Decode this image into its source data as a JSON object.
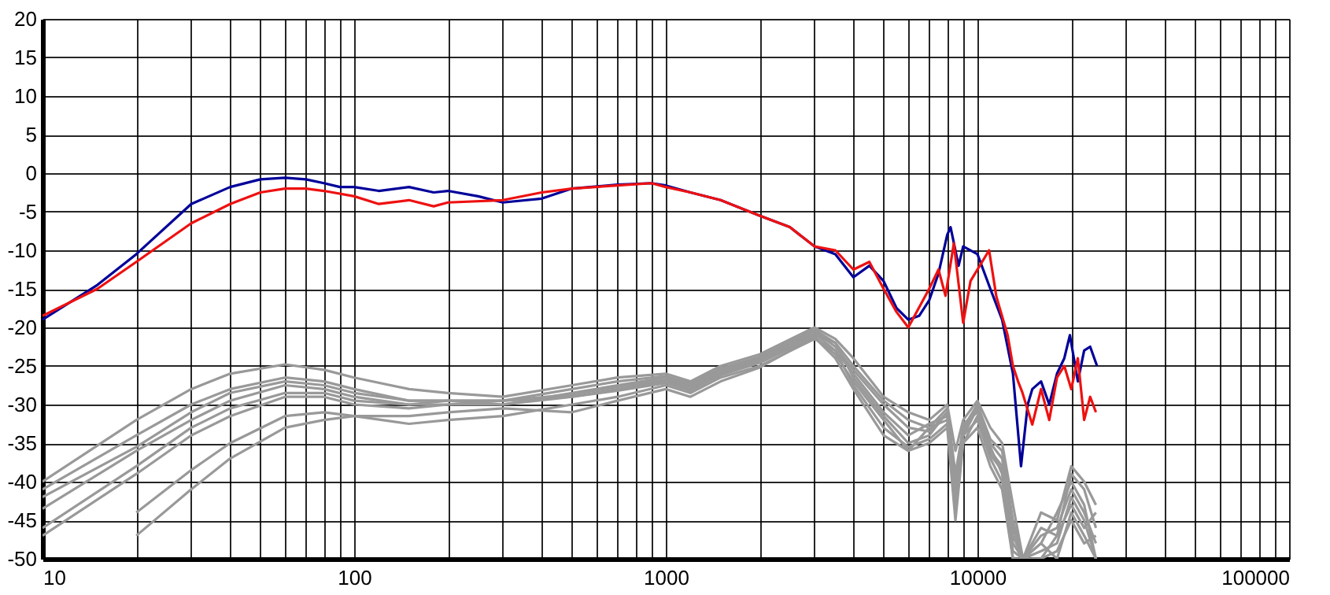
{
  "chart_data": {
    "type": "line",
    "log": "x",
    "grid": true,
    "legend": false,
    "line_style": "solid",
    "marker": "none",
    "xlim": [
      10,
      100000
    ],
    "ylim": [
      -50,
      20
    ],
    "xticks": [
      10,
      {
        "value": 20,
        "label": null
      },
      {
        "value": 30,
        "label": null
      },
      {
        "value": 40,
        "label": null
      },
      {
        "value": 50,
        "label": null
      },
      {
        "value": 60,
        "label": null
      },
      {
        "value": 70,
        "label": null
      },
      {
        "value": 80,
        "label": null
      },
      {
        "value": 90,
        "label": null
      },
      100,
      {
        "value": 200,
        "label": null
      },
      {
        "value": 300,
        "label": null
      },
      {
        "value": 400,
        "label": null
      },
      {
        "value": 500,
        "label": null
      },
      {
        "value": 600,
        "label": null
      },
      {
        "value": 700,
        "label": null
      },
      {
        "value": 800,
        "label": null
      },
      {
        "value": 900,
        "label": null
      },
      1000,
      {
        "value": 2000,
        "label": null
      },
      {
        "value": 3000,
        "label": null
      },
      {
        "value": 4000,
        "label": null
      },
      {
        "value": 5000,
        "label": null
      },
      {
        "value": 6000,
        "label": null
      },
      {
        "value": 7000,
        "label": null
      },
      {
        "value": 8000,
        "label": null
      },
      {
        "value": 9000,
        "label": null
      },
      10000,
      {
        "value": 20000,
        "label": null
      },
      {
        "value": 30000,
        "label": null
      },
      {
        "value": 40000,
        "label": null
      },
      {
        "value": 50000,
        "label": null
      },
      {
        "value": 60000,
        "label": null
      },
      {
        "value": 70000,
        "label": null
      },
      {
        "value": 80000,
        "label": null
      },
      {
        "value": 90000,
        "label": null
      },
      100000
    ],
    "yticks": [
      -50,
      -45,
      -40,
      -35,
      -30,
      -25,
      -20,
      -15,
      -10,
      -5,
      0,
      5,
      10,
      15,
      20
    ],
    "x": [
      10,
      20,
      30,
      40,
      60,
      80,
      100,
      150,
      200,
      300,
      500,
      700,
      1000,
      1200,
      1500,
      2000,
      3000,
      3500,
      4000,
      5000,
      6000,
      7000,
      8000,
      8500,
      9000,
      10000,
      11000,
      12000,
      13000,
      14000,
      16000,
      18000,
      20000,
      22000,
      24000
    ],
    "series": [
      {
        "color": "#999999",
        "values": [
          -40,
          -32,
          -28,
          -26,
          -24.8,
          -25.5,
          -26.5,
          -28,
          -28.5,
          -29,
          -27.5,
          -26.5,
          -26,
          -27,
          -25,
          -23.5,
          -20,
          -21.5,
          -24,
          -29,
          -31,
          -32,
          -30,
          -36,
          -32,
          -29.5,
          -33,
          -35,
          -43,
          -50,
          -44,
          -45,
          -38,
          -40,
          -43
        ]
      },
      {
        "color": "#999999",
        "values": [
          -41,
          -34,
          -30,
          -28,
          -26.5,
          -27,
          -28,
          -29.5,
          -29.5,
          -29.5,
          -28,
          -27,
          -26.3,
          -27.3,
          -25.3,
          -23.8,
          -20.3,
          -22,
          -25,
          -29.5,
          -32,
          -33,
          -30.5,
          -39,
          -33,
          -30,
          -34.5,
          -36,
          -45,
          -50,
          -46,
          -47,
          -39,
          -41,
          -46
        ]
      },
      {
        "color": "#999999",
        "values": [
          -42,
          -35.5,
          -31,
          -28.5,
          -27,
          -27.5,
          -28.5,
          -29.5,
          -29.5,
          -30,
          -28.5,
          -27.5,
          -26.5,
          -27.5,
          -25.5,
          -24,
          -20.5,
          -22.5,
          -25.5,
          -30,
          -33,
          -33.5,
          -31,
          -40,
          -34,
          -30.5,
          -35,
          -37,
          -46,
          -50,
          -48,
          -44,
          -40,
          -43,
          -50
        ]
      },
      {
        "color": "#999999",
        "values": [
          -43.5,
          -36,
          -32,
          -29.5,
          -27.5,
          -28,
          -29,
          -30,
          -29.5,
          -29.5,
          -28.7,
          -27.7,
          -26.8,
          -27.7,
          -25.8,
          -24.2,
          -20.8,
          -23,
          -26,
          -31,
          -34,
          -32.5,
          -31.5,
          -42,
          -32.5,
          -31,
          -36,
          -38,
          -48,
          -50,
          -47,
          -46,
          -41,
          -44,
          -48
        ]
      },
      {
        "color": "#999999",
        "values": [
          -46,
          -38,
          -33,
          -30.5,
          -28.5,
          -28.5,
          -29.5,
          -30,
          -30,
          -29.5,
          -29,
          -28,
          -27,
          -28,
          -26,
          -24.5,
          -21,
          -22,
          -26.5,
          -31.5,
          -35,
          -34,
          -31,
          -44,
          -33.5,
          -30,
          -35.5,
          -39,
          -50,
          -50,
          -49,
          -48,
          -42,
          -45,
          -50
        ]
      },
      {
        "color": "#999999",
        "values": [
          -47,
          -39,
          -34,
          -31.5,
          -29,
          -29,
          -30,
          -30.5,
          -30,
          -30,
          -29,
          -28.2,
          -27.2,
          -28.2,
          -26.2,
          -24.6,
          -21.2,
          -23.5,
          -27,
          -32,
          -36,
          -33,
          -32,
          -41,
          -35,
          -31.5,
          -36.5,
          -38.5,
          -47,
          -50,
          -50,
          -47,
          -43,
          -46,
          -44
        ]
      },
      {
        "color": "#999999",
        "values": [
          null,
          -44,
          -38.5,
          -35,
          -31.5,
          -31,
          -31.5,
          -32.5,
          -32,
          -31.5,
          -30,
          -29,
          -27.5,
          -28.5,
          -26.5,
          -25,
          -21.5,
          -23,
          -27.5,
          -33,
          -35.5,
          -34.5,
          -32.5,
          -43,
          -34,
          -32,
          -37,
          -40,
          -49,
          -50,
          -48,
          -50,
          -44,
          -47,
          -50
        ]
      },
      {
        "color": "#999999",
        "values": [
          null,
          -47,
          -41,
          -37,
          -33,
          -32,
          -31.5,
          -31.5,
          -31,
          -30.5,
          -31,
          -29.5,
          -28,
          -29,
          -27,
          -25.2,
          -21.3,
          -24,
          -28,
          -34,
          -36,
          -35,
          -33,
          -45,
          -35,
          -33,
          -38,
          -41,
          -50,
          -50,
          -50,
          -49,
          -45,
          -48,
          -47
        ]
      },
      {
        "color": "#000099",
        "x": [
          10,
          15,
          20,
          30,
          40,
          50,
          60,
          70,
          80,
          90,
          100,
          120,
          150,
          180,
          200,
          250,
          300,
          400,
          500,
          700,
          900,
          1000,
          1200,
          1500,
          2000,
          2500,
          3000,
          3500,
          4000,
          4500,
          5000,
          5500,
          6000,
          6500,
          7000,
          7500,
          8000,
          8200,
          8700,
          9000,
          10000,
          11000,
          12000,
          13000,
          13800,
          14500,
          15000,
          16000,
          17000,
          18000,
          19000,
          19800,
          21000,
          22000,
          23000,
          24200
        ],
        "values": [
          -19,
          -14.5,
          -10.5,
          -4,
          -1.8,
          -0.8,
          -0.6,
          -0.8,
          -1.3,
          -1.8,
          -1.8,
          -2.3,
          -1.8,
          -2.5,
          -2.3,
          -3,
          -3.8,
          -3.3,
          -2,
          -1.5,
          -1.3,
          -1.6,
          -2.5,
          -3.5,
          -5.5,
          -7,
          -9.5,
          -10.5,
          -13.5,
          -12,
          -14,
          -17.5,
          -19,
          -18.5,
          -16.5,
          -13,
          -8,
          -7,
          -12,
          -9.5,
          -10.5,
          -15,
          -19,
          -26,
          -38,
          -30,
          -28,
          -27,
          -30,
          -26,
          -24,
          -21,
          -27,
          -23,
          -22.5,
          -25
        ]
      },
      {
        "color": "#ee1111",
        "x": [
          10,
          15,
          20,
          30,
          40,
          50,
          60,
          70,
          80,
          100,
          120,
          150,
          180,
          200,
          300,
          400,
          500,
          700,
          900,
          1000,
          1200,
          1500,
          2000,
          2500,
          3000,
          3500,
          4000,
          4500,
          5000,
          5500,
          6000,
          7000,
          7500,
          7900,
          8400,
          9000,
          9500,
          10900,
          11500,
          12500,
          13000,
          13500,
          13900,
          15000,
          16000,
          17000,
          18000,
          19000,
          20000,
          21000,
          22000,
          23000,
          24000
        ],
        "values": [
          -18.5,
          -15,
          -11.5,
          -6.5,
          -4,
          -2.5,
          -2,
          -2,
          -2.3,
          -3,
          -4,
          -3.5,
          -4.3,
          -3.8,
          -3.5,
          -2.5,
          -2,
          -1.6,
          -1.3,
          -1.8,
          -2.5,
          -3.5,
          -5.5,
          -7,
          -9.5,
          -10,
          -12.5,
          -11.5,
          -15,
          -18,
          -20,
          -15,
          -12.5,
          -15.9,
          -9.1,
          -19.4,
          -14,
          -10,
          -16,
          -21,
          -25,
          -27,
          -28.3,
          -32.6,
          -28,
          -32,
          -26.5,
          -25,
          -28,
          -24,
          -32,
          -29,
          -31
        ]
      }
    ]
  }
}
